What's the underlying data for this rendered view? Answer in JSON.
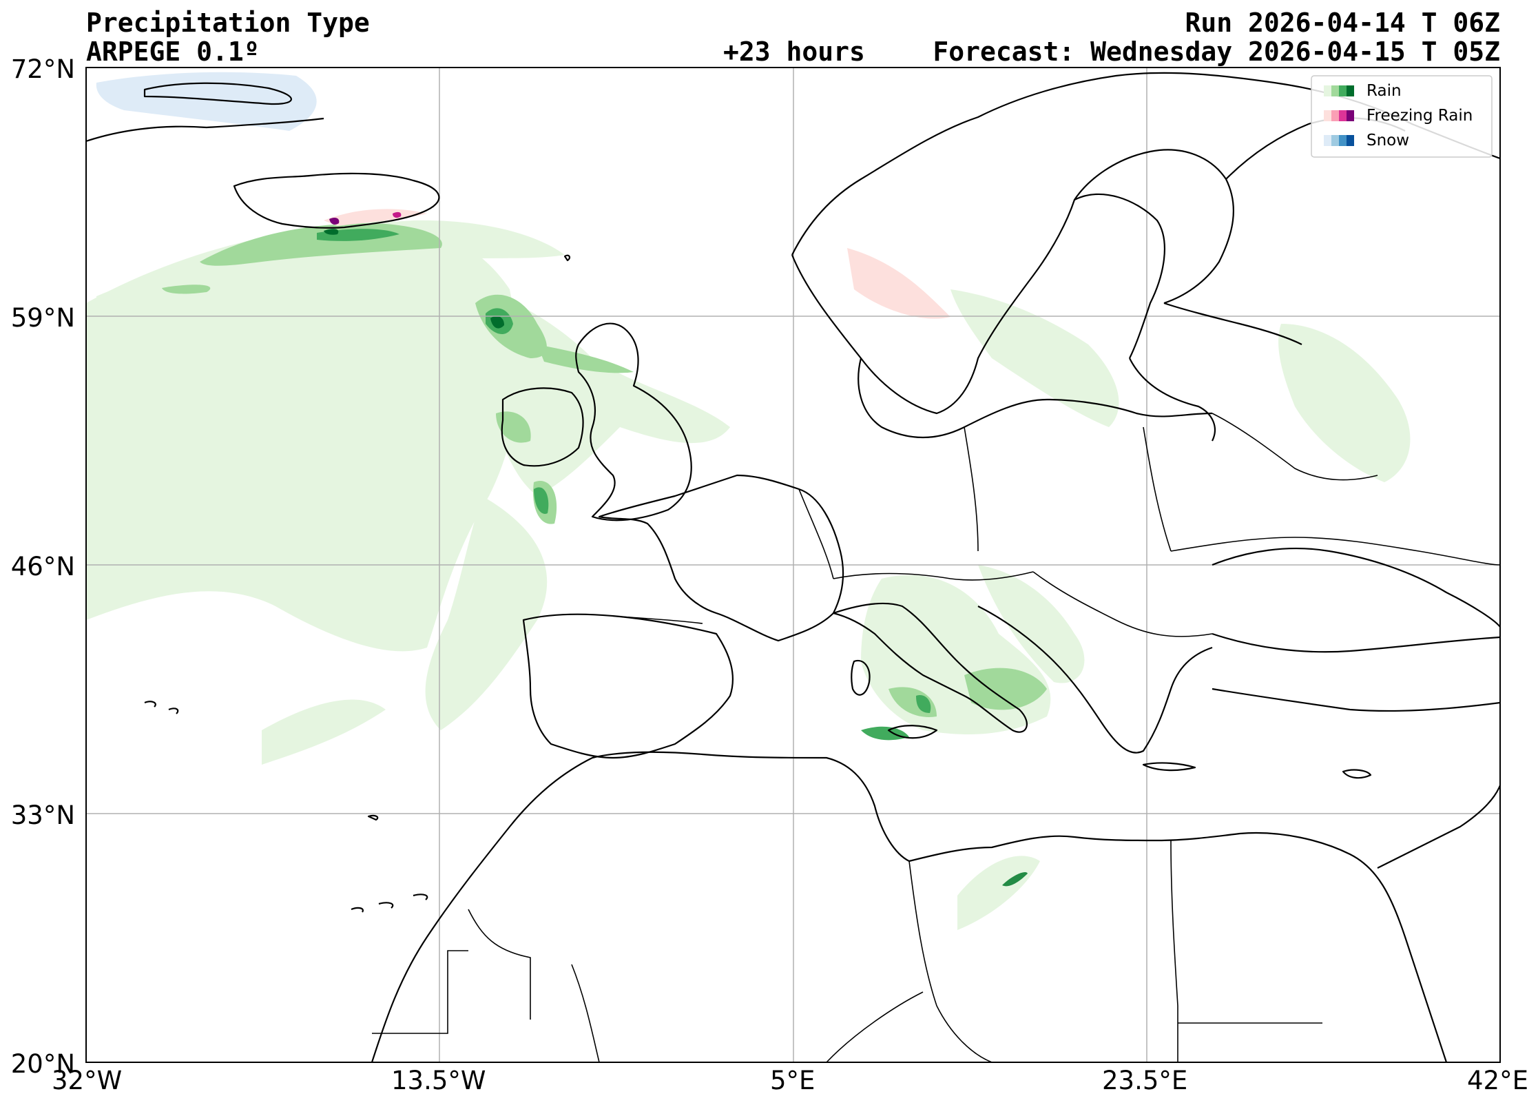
{
  "header": {
    "title": "Precipitation Type",
    "model": "ARPEGE 0.1º",
    "lead_time": "+23 hours",
    "run": "Run 2026-04-14 T 06Z",
    "forecast": "Forecast: Wednesday 2026-04-15 T 05Z"
  },
  "map": {
    "extent": {
      "lon_min": -32,
      "lon_max": 42,
      "lat_min": 20,
      "lat_max": 72
    },
    "lat_ticks": [
      {
        "value": 72,
        "label": "72°N"
      },
      {
        "value": 59,
        "label": "59°N"
      },
      {
        "value": 46,
        "label": "46°N"
      },
      {
        "value": 33,
        "label": "33°N"
      },
      {
        "value": 20,
        "label": "20°N"
      }
    ],
    "lon_ticks": [
      {
        "value": -32,
        "label": "32°W"
      },
      {
        "value": -13.5,
        "label": "13.5°W"
      },
      {
        "value": 5,
        "label": "5°E"
      },
      {
        "value": 23.5,
        "label": "23.5°E"
      },
      {
        "value": 42,
        "label": "42°E"
      }
    ],
    "gridlines": true,
    "legend_position": "top-right"
  },
  "legend": {
    "items": [
      {
        "label": "Rain",
        "colors": [
          "#e5f5e0",
          "#a1d99b",
          "#41ab5d",
          "#006d2c"
        ]
      },
      {
        "label": "Freezing Rain",
        "colors": [
          "#fde0dd",
          "#fa9fb5",
          "#dd3497",
          "#7a0177"
        ]
      },
      {
        "label": "Snow",
        "colors": [
          "#deebf7",
          "#9ecae1",
          "#4292c6",
          "#08519c"
        ]
      }
    ]
  },
  "colors": {
    "rain_light": "#e5f5e0",
    "rain_medium": "#a1d99b",
    "rain_strong": "#41ab5d",
    "rain_heavy": "#006d2c",
    "freezing_light": "#fde0dd",
    "freezing_heavy": "#7a0177",
    "snow_light": "#deebf7",
    "coastline": "#000000",
    "grid": "#b0b0b0"
  }
}
